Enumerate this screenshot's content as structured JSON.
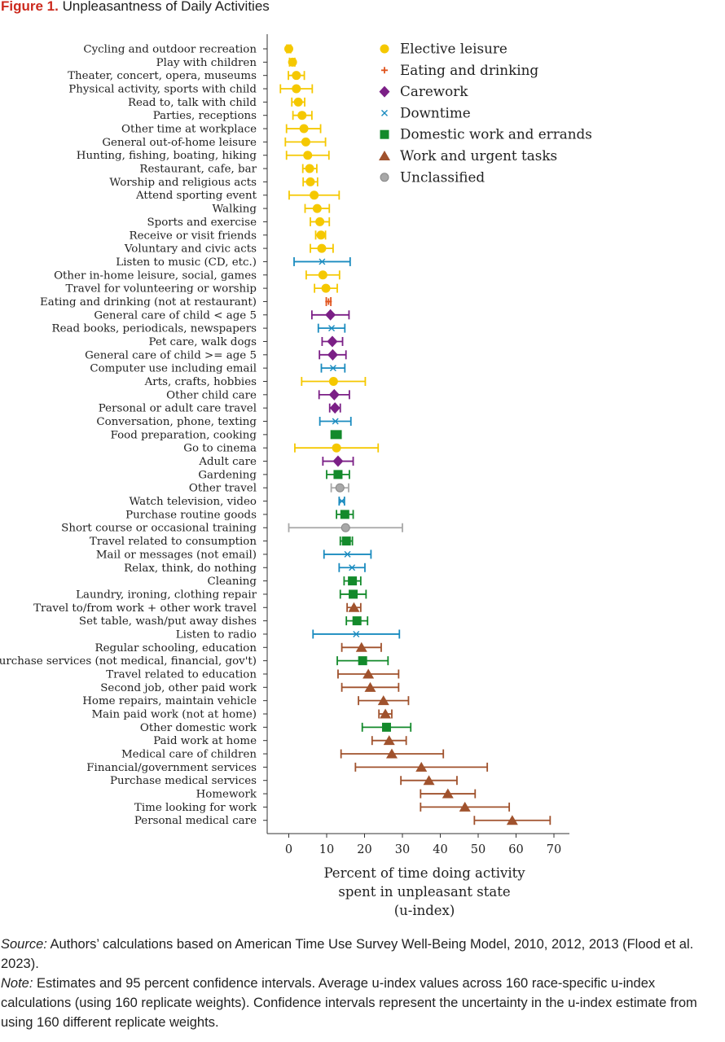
{
  "figure": {
    "label": "Figure 1.",
    "title": "Unpleasantness of Daily Activities"
  },
  "chart_data": {
    "type": "scatter",
    "title": "Unpleasantness of Daily Activities",
    "xlabel": [
      "Percent of time doing activity",
      "spent in unpleasant state",
      "(u-index)"
    ],
    "ylabel": "",
    "xlim": [
      -3,
      73
    ],
    "xticks": [
      0,
      10,
      20,
      30,
      40,
      50,
      60,
      70
    ],
    "grid": false,
    "legend_position": "top-right",
    "series": [
      {
        "name": "Elective leisure",
        "color": "#f5c800",
        "marker": "circle"
      },
      {
        "name": "Eating and drinking",
        "color": "#e0541e",
        "marker": "plus"
      },
      {
        "name": "Carework",
        "color": "#7b1f86",
        "marker": "diamond"
      },
      {
        "name": "Downtime",
        "color": "#1a8bbf",
        "marker": "x"
      },
      {
        "name": "Domestic work and errands",
        "color": "#138a2b",
        "marker": "square"
      },
      {
        "name": "Work and urgent tasks",
        "color": "#a0522d",
        "marker": "triangle"
      },
      {
        "name": "Unclassified",
        "color": "#a8a8a8",
        "marker": "circle-outline"
      }
    ],
    "points": [
      {
        "label": "Cycling and outdoor recreation",
        "series": 0,
        "value": 0,
        "ci": [
          -0.5,
          0.5
        ]
      },
      {
        "label": "Play with children",
        "series": 0,
        "value": 1,
        "ci": [
          0.2,
          1.6
        ]
      },
      {
        "label": "Theater, concert, opera, museums",
        "series": 0,
        "value": 2,
        "ci": [
          -0.1,
          4.1
        ]
      },
      {
        "label": "Physical activity, sports with child",
        "series": 0,
        "value": 2,
        "ci": [
          -2.2,
          6.2
        ]
      },
      {
        "label": "Read to, talk with child",
        "series": 0,
        "value": 2.5,
        "ci": [
          0.8,
          4.2
        ]
      },
      {
        "label": "Parties, receptions",
        "series": 0,
        "value": 3.5,
        "ci": [
          1.1,
          6.1
        ]
      },
      {
        "label": "Other time at workplace",
        "series": 0,
        "value": 4,
        "ci": [
          -0.6,
          8.4
        ]
      },
      {
        "label": "General out-of-home leisure",
        "series": 0,
        "value": 4.5,
        "ci": [
          -0.9,
          9.7
        ]
      },
      {
        "label": "Hunting, fishing, boating, hiking",
        "series": 0,
        "value": 5,
        "ci": [
          -0.6,
          10.6
        ]
      },
      {
        "label": "Restaurant, cafe, bar",
        "series": 0,
        "value": 5.5,
        "ci": [
          3.7,
          7.4
        ]
      },
      {
        "label": "Worship and religious acts",
        "series": 0,
        "value": 5.7,
        "ci": [
          3.8,
          7.6
        ]
      },
      {
        "label": "Attend sporting event",
        "series": 0,
        "value": 6.7,
        "ci": [
          0.1,
          13.3
        ]
      },
      {
        "label": "Walking",
        "series": 0,
        "value": 7.5,
        "ci": [
          4.3,
          10.7
        ]
      },
      {
        "label": "Sports and exercise",
        "series": 0,
        "value": 8.2,
        "ci": [
          5.7,
          10.7
        ]
      },
      {
        "label": "Receive or visit friends",
        "series": 0,
        "value": 8.5,
        "ci": [
          7.1,
          9.7
        ]
      },
      {
        "label": "Voluntary and civic acts",
        "series": 0,
        "value": 8.7,
        "ci": [
          5.7,
          11.7
        ]
      },
      {
        "label": "Listen to music (CD, etc.)",
        "series": 3,
        "value": 8.8,
        "ci": [
          1.4,
          16.2
        ]
      },
      {
        "label": "Other in-home leisure, social, games",
        "series": 0,
        "value": 9,
        "ci": [
          4.6,
          13.4
        ]
      },
      {
        "label": "Travel for volunteering or worship",
        "series": 0,
        "value": 9.8,
        "ci": [
          6.8,
          12.8
        ]
      },
      {
        "label": "Eating and drinking (not at restaurant)",
        "series": 1,
        "value": 10.5,
        "ci": [
          9.9,
          11.1
        ]
      },
      {
        "label": "General care of child < age 5",
        "series": 2,
        "value": 11,
        "ci": [
          6.1,
          15.9
        ]
      },
      {
        "label": "Read books, periodicals, newspapers",
        "series": 3,
        "value": 11.3,
        "ci": [
          7.8,
          14.8
        ]
      },
      {
        "label": "Pet care, walk dogs",
        "series": 2,
        "value": 11.5,
        "ci": [
          8.8,
          14.2
        ]
      },
      {
        "label": "General care of child >= age 5",
        "series": 2,
        "value": 11.6,
        "ci": [
          8.1,
          15.1
        ]
      },
      {
        "label": "Computer use including email",
        "series": 3,
        "value": 11.7,
        "ci": [
          8.6,
          14.8
        ]
      },
      {
        "label": "Arts, crafts, hobbies",
        "series": 0,
        "value": 11.8,
        "ci": [
          3.4,
          20.2
        ]
      },
      {
        "label": "Other child care",
        "series": 2,
        "value": 12,
        "ci": [
          8,
          16
        ]
      },
      {
        "label": "Personal or adult care travel",
        "series": 2,
        "value": 12.2,
        "ci": [
          10.8,
          13.6
        ]
      },
      {
        "label": "Conversation, phone, texting",
        "series": 3,
        "value": 12.3,
        "ci": [
          8.2,
          16.4
        ]
      },
      {
        "label": "Food preparation, cooking",
        "series": 4,
        "value": 12.5,
        "ci": [
          11.2,
          13.8
        ]
      },
      {
        "label": "Go to cinema",
        "series": 0,
        "value": 12.6,
        "ci": [
          1.6,
          23.6
        ]
      },
      {
        "label": "Adult care",
        "series": 2,
        "value": 13,
        "ci": [
          9,
          17
        ]
      },
      {
        "label": "Gardening",
        "series": 4,
        "value": 13,
        "ci": [
          10,
          16
        ]
      },
      {
        "label": "Other travel",
        "series": 6,
        "value": 13.5,
        "ci": [
          11.2,
          15.8
        ]
      },
      {
        "label": "Watch television, video",
        "series": 3,
        "value": 14,
        "ci": [
          13.3,
          14.7
        ]
      },
      {
        "label": "Purchase routine goods",
        "series": 4,
        "value": 14.8,
        "ci": [
          12.6,
          17
        ]
      },
      {
        "label": "Short course or occasional training",
        "series": 6,
        "value": 15,
        "ci": [
          0,
          30
        ]
      },
      {
        "label": "Travel related to consumption",
        "series": 4,
        "value": 15.2,
        "ci": [
          13.6,
          16.8
        ]
      },
      {
        "label": "Mail or messages (not email)",
        "series": 3,
        "value": 15.5,
        "ci": [
          9.3,
          21.7
        ]
      },
      {
        "label": "Relax, think, do nothing",
        "series": 3,
        "value": 16.7,
        "ci": [
          13.3,
          20.1
        ]
      },
      {
        "label": "Cleaning",
        "series": 4,
        "value": 16.8,
        "ci": [
          14.6,
          19
        ]
      },
      {
        "label": "Laundry, ironing, clothing repair",
        "series": 4,
        "value": 17,
        "ci": [
          13.6,
          20.4
        ]
      },
      {
        "label": "Travel to/from work + other work travel",
        "series": 5,
        "value": 17.2,
        "ci": [
          15.4,
          19
        ]
      },
      {
        "label": "Set table, wash/put away dishes",
        "series": 4,
        "value": 18,
        "ci": [
          15.2,
          20.8
        ]
      },
      {
        "label": "Listen to radio",
        "series": 3,
        "value": 17.8,
        "ci": [
          6.4,
          29.2
        ]
      },
      {
        "label": "Regular schooling, education",
        "series": 5,
        "value": 19.2,
        "ci": [
          14,
          24.4
        ]
      },
      {
        "label": "Purchase services (not medical, financial, gov't)",
        "series": 4,
        "value": 19.5,
        "ci": [
          12.8,
          26.2
        ]
      },
      {
        "label": "Travel related to education",
        "series": 5,
        "value": 21,
        "ci": [
          13,
          29
        ]
      },
      {
        "label": "Second job, other paid work",
        "series": 5,
        "value": 21.5,
        "ci": [
          14,
          29
        ]
      },
      {
        "label": "Home repairs, maintain vehicle",
        "series": 5,
        "value": 25,
        "ci": [
          18.4,
          31.6
        ]
      },
      {
        "label": "Main paid work (not at home)",
        "series": 5,
        "value": 25.5,
        "ci": [
          23.8,
          27.2
        ]
      },
      {
        "label": "Other domestic work",
        "series": 4,
        "value": 25.8,
        "ci": [
          19.4,
          32.2
        ]
      },
      {
        "label": "Paid work at home",
        "series": 5,
        "value": 26.5,
        "ci": [
          22,
          31
        ]
      },
      {
        "label": "Medical care of children",
        "series": 5,
        "value": 27.2,
        "ci": [
          13.8,
          40.8
        ]
      },
      {
        "label": "Financial/government services",
        "series": 5,
        "value": 35,
        "ci": [
          17.6,
          52.4
        ]
      },
      {
        "label": "Purchase medical services",
        "series": 5,
        "value": 37,
        "ci": [
          29.6,
          44.4
        ]
      },
      {
        "label": "Homework",
        "series": 5,
        "value": 42,
        "ci": [
          34.8,
          49.2
        ]
      },
      {
        "label": "Time looking for work",
        "series": 5,
        "value": 46.5,
        "ci": [
          34.8,
          58.2
        ]
      },
      {
        "label": "Personal medical care",
        "series": 5,
        "value": 59,
        "ci": [
          49,
          69
        ]
      }
    ]
  },
  "notes": {
    "source_label": "Source:",
    "source_text": " Authors’ calculations based on American Time Use Survey Well-Being Model, 2010, 2012, 2013 (Flood et al. 2023).",
    "note_label": "Note:",
    "note_text": " Estimates and 95 percent confidence intervals. Average u-index values across 160 race-specific u-index calculations (using 160 replicate weights). Confidence intervals represent the uncertainty in the u-index estimate from using 160 different replicate weights."
  }
}
